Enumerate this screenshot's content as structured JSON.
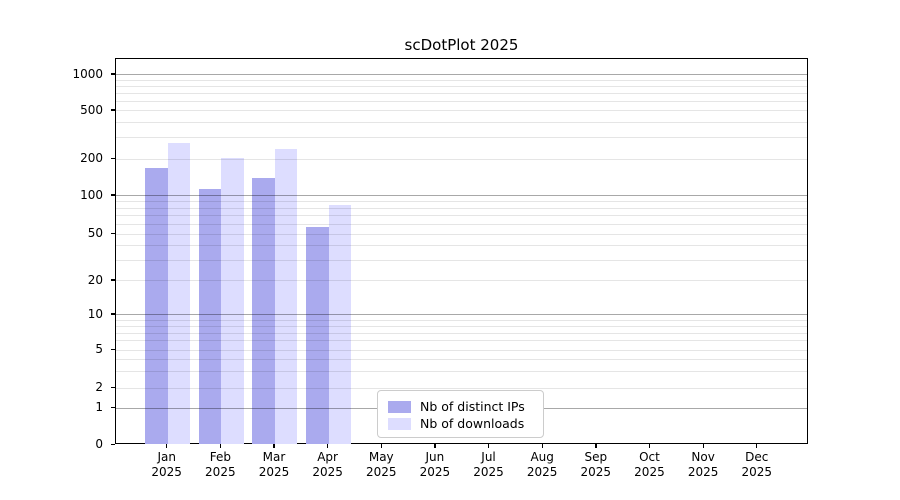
{
  "title": "scDotPlot 2025",
  "chart_data": {
    "type": "bar",
    "title": "scDotPlot 2025",
    "categories": [
      "Jan 2025",
      "Feb 2025",
      "Mar 2025",
      "Apr 2025",
      "May 2025",
      "Jun 2025",
      "Jul 2025",
      "Aug 2025",
      "Sep 2025",
      "Oct 2025",
      "Nov 2025",
      "Dec 2025"
    ],
    "series": [
      {
        "name": "Nb of distinct IPs",
        "color": "#aaaaee",
        "values": [
          170,
          115,
          140,
          57,
          0,
          0,
          0,
          0,
          0,
          0,
          0,
          0
        ]
      },
      {
        "name": "Nb of downloads",
        "color": "#ddddff",
        "values": [
          270,
          205,
          245,
          85,
          0,
          0,
          0,
          0,
          0,
          0,
          0,
          0
        ]
      }
    ],
    "y_ticks": [
      0,
      1,
      2,
      5,
      10,
      20,
      50,
      100,
      200,
      500,
      1000
    ],
    "y_scale": "symlog",
    "ylim": [
      0,
      1200
    ],
    "xlabel": "",
    "ylabel": "",
    "grid": "horizontal, major (powers of 10) and minor (log subdivisions), drawn over bars",
    "legend_position": "inside plot, lower middle",
    "legend_entries": [
      "Nb of distinct IPs",
      "Nb of downloads"
    ]
  },
  "axis_colors": {
    "major_grid": "#ababab",
    "minor_grid": "#e6e6e6",
    "axis_border": "#000000",
    "text": "#000000"
  }
}
